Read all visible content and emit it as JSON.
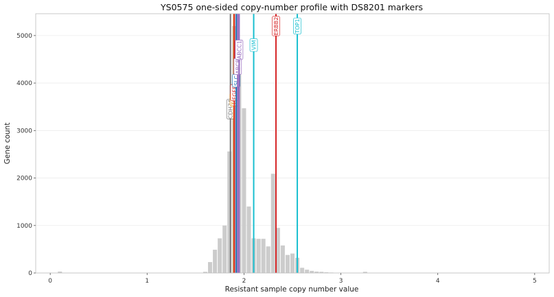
{
  "chart_data": {
    "type": "bar",
    "title": "YS0575 one-sided copy-number profile with DS8201 markers",
    "xlabel": "Resistant sample copy number value",
    "ylabel": "Gene count",
    "xlim": [
      -0.15,
      5.15
    ],
    "ylim": [
      0,
      5460
    ],
    "xticks": [
      "0",
      "1",
      "2",
      "3",
      "4",
      "5"
    ],
    "yticks": [
      "0",
      "1000",
      "2000",
      "3000",
      "4000",
      "5000"
    ],
    "bin_width": 0.05,
    "grid": true,
    "bars": [
      {
        "x": 0.1,
        "y": 30
      },
      {
        "x": 1.6,
        "y": 25
      },
      {
        "x": 1.65,
        "y": 230
      },
      {
        "x": 1.7,
        "y": 490
      },
      {
        "x": 1.75,
        "y": 730
      },
      {
        "x": 1.8,
        "y": 1000
      },
      {
        "x": 1.85,
        "y": 2560
      },
      {
        "x": 1.9,
        "y": 5200
      },
      {
        "x": 1.95,
        "y": 4870
      },
      {
        "x": 2.0,
        "y": 3470
      },
      {
        "x": 2.05,
        "y": 1400
      },
      {
        "x": 2.1,
        "y": 730
      },
      {
        "x": 2.15,
        "y": 720
      },
      {
        "x": 2.2,
        "y": 720
      },
      {
        "x": 2.25,
        "y": 560
      },
      {
        "x": 2.3,
        "y": 2090
      },
      {
        "x": 2.35,
        "y": 950
      },
      {
        "x": 2.4,
        "y": 580
      },
      {
        "x": 2.45,
        "y": 380
      },
      {
        "x": 2.5,
        "y": 410
      },
      {
        "x": 2.55,
        "y": 320
      },
      {
        "x": 2.6,
        "y": 110
      },
      {
        "x": 2.65,
        "y": 70
      },
      {
        "x": 2.7,
        "y": 45
      },
      {
        "x": 2.75,
        "y": 30
      },
      {
        "x": 2.8,
        "y": 25
      },
      {
        "x": 2.85,
        "y": 15
      },
      {
        "x": 2.9,
        "y": 10
      },
      {
        "x": 3.25,
        "y": 25
      }
    ],
    "markers": [
      {
        "label": "CDH74",
        "x": 1.86,
        "color": "#777777",
        "label_y": 3450
      },
      {
        "label": "TOP",
        "x": 1.895,
        "color": "#e08a00",
        "label_y": 3650
      },
      {
        "label": "FGFR",
        "x": 1.9,
        "color": "#d62728",
        "label_y": 3800
      },
      {
        "label": "SLC",
        "x": 1.92,
        "color": "#1f77b4",
        "label_y": 4050
      },
      {
        "label": "ABCB",
        "x": 1.935,
        "color": "#9467bd",
        "label_y": 4350
      },
      {
        "label": "ABCC1",
        "x": 1.95,
        "color": "#9467bd",
        "label_y": 4700
      },
      {
        "label": "VIM",
        "x": 2.1,
        "color": "#17becf",
        "label_y": 4800
      },
      {
        "label": "ERBB2",
        "x": 2.33,
        "color": "#d62728",
        "label_y": 5200
      },
      {
        "label": "TOP1",
        "x": 2.55,
        "color": "#17becf",
        "label_y": 5200
      }
    ]
  }
}
